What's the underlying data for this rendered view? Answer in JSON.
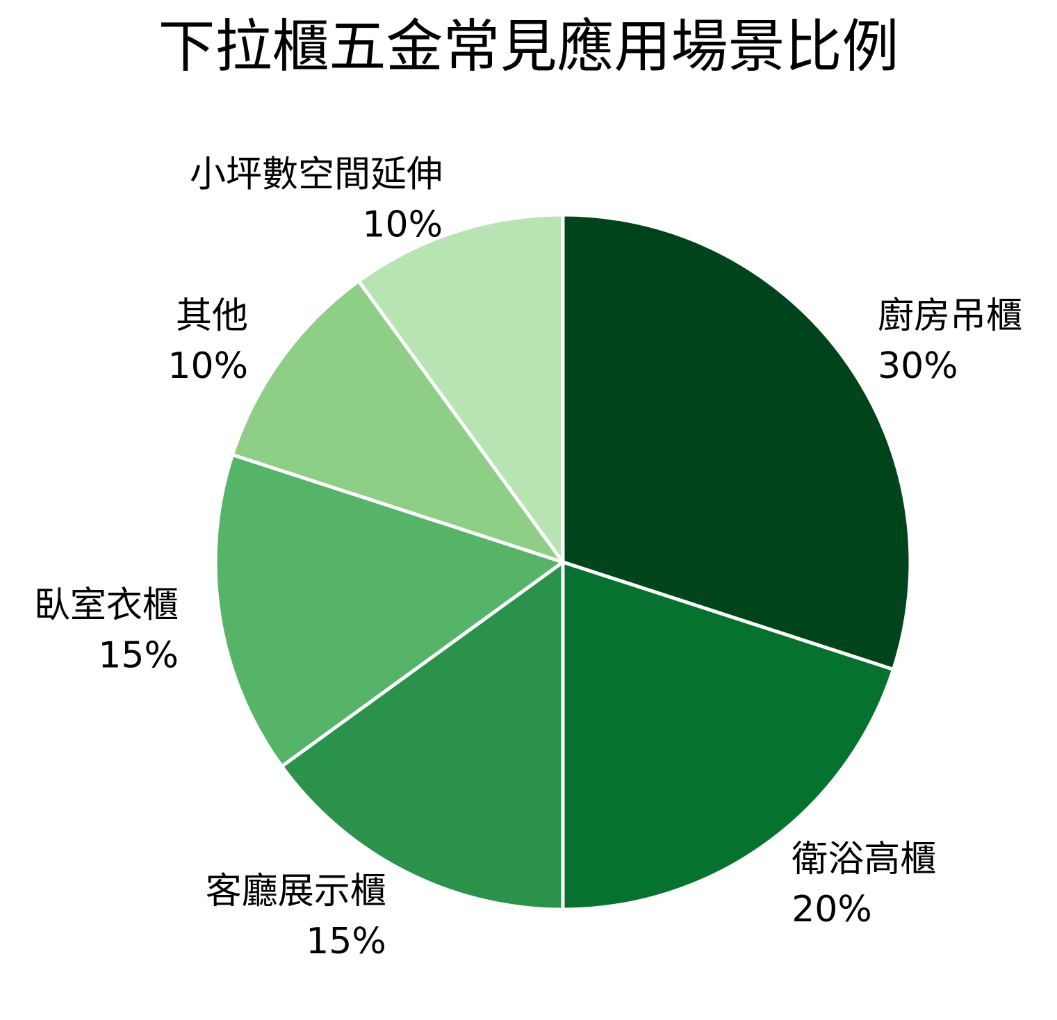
{
  "chart_data": {
    "type": "pie",
    "title": "下拉櫃五金常見應用場景比例",
    "categories": [
      "廚房吊櫃",
      "衛浴高櫃",
      "客廳展示櫃",
      "臥室衣櫃",
      "其他",
      "小坪數空間延伸"
    ],
    "values": [
      30,
      20,
      15,
      15,
      10,
      10
    ],
    "value_labels": [
      "30%",
      "20%",
      "15%",
      "15%",
      "10%",
      "10%"
    ],
    "colors": [
      "#00441b",
      "#067230",
      "#2b924b",
      "#55b467",
      "#8ece87",
      "#b8e3b2"
    ],
    "start_angle": "12 o'clock",
    "direction": "clockwise",
    "slice_border_color": "#ffffff",
    "legend": "none"
  }
}
